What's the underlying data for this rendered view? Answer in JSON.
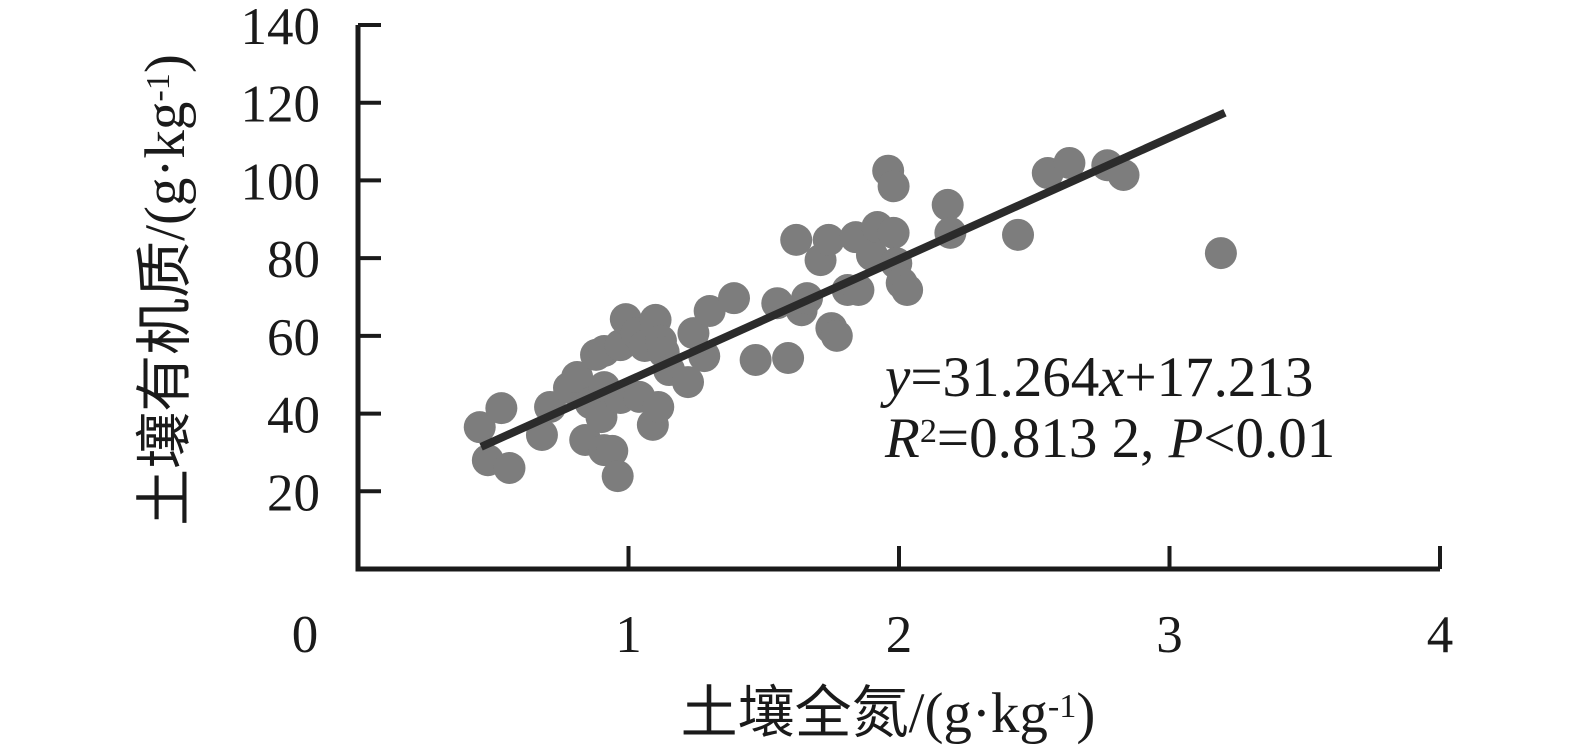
{
  "chart_data": {
    "type": "scatter",
    "title": "",
    "xlabel": "土壤全氮/(g·kg⁻¹)",
    "ylabel": "土壤有机质/(g·kg⁻¹)",
    "xlabel_parts": {
      "pre": "土壤全氮/(g·kg",
      "sup": "-1",
      "post": ")"
    },
    "ylabel_parts": {
      "pre": "土壤有机质/(g·kg",
      "sup": "-1",
      "post": ")"
    },
    "xlim": [
      0,
      4
    ],
    "ylim": [
      0,
      140
    ],
    "x_ticks": [
      0,
      1,
      2,
      3,
      4
    ],
    "y_ticks": [
      20,
      40,
      60,
      80,
      100,
      120,
      140
    ],
    "grid": false,
    "legend": "none",
    "marker_radius_px": 16,
    "points": [
      [
        0.45,
        36.5
      ],
      [
        0.48,
        28.0
      ],
      [
        0.53,
        41.4
      ],
      [
        0.56,
        26.0
      ],
      [
        0.68,
        34.5
      ],
      [
        0.71,
        41.7
      ],
      [
        0.78,
        46.6
      ],
      [
        0.81,
        49.4
      ],
      [
        0.84,
        33.2
      ],
      [
        0.86,
        42.7
      ],
      [
        0.88,
        55.1
      ],
      [
        0.91,
        56.1
      ],
      [
        0.91,
        46.8
      ],
      [
        0.9,
        39.1
      ],
      [
        0.91,
        30.6
      ],
      [
        0.94,
        30.4
      ],
      [
        0.96,
        23.9
      ],
      [
        0.97,
        44.0
      ],
      [
        0.97,
        57.6
      ],
      [
        0.99,
        64.3
      ],
      [
        1.03,
        60.7
      ],
      [
        1.04,
        44.3
      ],
      [
        1.06,
        57.4
      ],
      [
        1.1,
        64.1
      ],
      [
        1.09,
        37.1
      ],
      [
        1.12,
        58.7
      ],
      [
        1.13,
        55.8
      ],
      [
        1.11,
        41.7
      ],
      [
        1.15,
        51.2
      ],
      [
        1.22,
        48.1
      ],
      [
        1.24,
        60.7
      ],
      [
        1.28,
        54.8
      ],
      [
        1.3,
        66.4
      ],
      [
        1.39,
        69.7
      ],
      [
        1.47,
        53.8
      ],
      [
        1.59,
        54.3
      ],
      [
        1.55,
        68.4
      ],
      [
        1.62,
        84.7
      ],
      [
        1.64,
        66.6
      ],
      [
        1.66,
        69.7
      ],
      [
        1.71,
        79.5
      ],
      [
        1.74,
        84.7
      ],
      [
        1.75,
        62.0
      ],
      [
        1.77,
        60.0
      ],
      [
        1.81,
        71.8
      ],
      [
        1.84,
        85.4
      ],
      [
        1.85,
        71.8
      ],
      [
        1.9,
        80.8
      ],
      [
        1.92,
        88.0
      ],
      [
        1.96,
        102.5
      ],
      [
        1.98,
        98.5
      ],
      [
        1.98,
        86.5
      ],
      [
        1.99,
        78.7
      ],
      [
        2.01,
        73.6
      ],
      [
        2.03,
        71.8
      ],
      [
        2.18,
        93.7
      ],
      [
        2.19,
        86.5
      ],
      [
        2.44,
        86.0
      ],
      [
        2.55,
        101.9
      ],
      [
        2.63,
        104.5
      ],
      [
        2.77,
        103.9
      ],
      [
        2.83,
        101.4
      ],
      [
        3.19,
        81.3
      ]
    ],
    "trendline": {
      "slope": 31.264,
      "intercept": 17.213,
      "x_start": 0.455,
      "x_end": 3.205
    },
    "annotation": {
      "eq": {
        "v1": "y",
        "t1": "=31.264",
        "v2": "x",
        "t2": "+17.213"
      },
      "stats": {
        "v1": "R",
        "sup": "2",
        "t1": "=0.813 2, ",
        "v2": "P",
        "t2": "<0.01"
      }
    },
    "colors": {
      "marker": "#7d7d7d",
      "trendline": "#2b2b2b",
      "axis": "#1a1a1a",
      "text": "#1a1a1a",
      "background": "#ffffff"
    }
  }
}
